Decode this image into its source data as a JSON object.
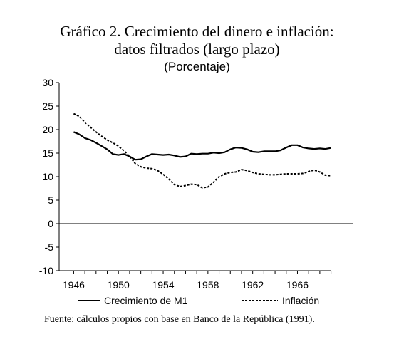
{
  "title_line1": "Gráfico 2. Crecimiento del dinero e inflación:",
  "title_line2": "datos filtrados (largo plazo)",
  "subtitle": "(Porcentaje)",
  "source": "Fuente: cálculos propios con base en Banco de la República (1991).",
  "chart_data": {
    "type": "line",
    "xlim": [
      1944.7,
      1971.0
    ],
    "ylim": [
      -10,
      30
    ],
    "yticks": [
      -10,
      -5,
      0,
      5,
      10,
      15,
      20,
      25,
      30
    ],
    "xticks": [
      1946,
      1950,
      1954,
      1958,
      1962,
      1966
    ],
    "grid": false,
    "legend_position": "bottom",
    "series": [
      {
        "name": "Crecimiento de M1",
        "style": "solid",
        "color": "#000000",
        "x": [
          1946,
          1946.5,
          1947,
          1947.5,
          1948,
          1948.5,
          1949,
          1949.5,
          1950,
          1950.5,
          1951,
          1951.5,
          1952,
          1952.5,
          1953,
          1953.5,
          1954,
          1954.5,
          1955,
          1955.5,
          1956,
          1956.5,
          1957,
          1957.5,
          1958,
          1958.5,
          1959,
          1959.5,
          1960,
          1960.5,
          1961,
          1961.5,
          1962,
          1962.5,
          1963,
          1963.5,
          1964,
          1964.5,
          1965,
          1965.5,
          1966,
          1966.5,
          1967,
          1967.5,
          1968,
          1968.5,
          1969
        ],
        "values": [
          19.5,
          19.0,
          18.2,
          17.8,
          17.2,
          16.5,
          15.8,
          14.8,
          14.6,
          14.8,
          14.3,
          13.6,
          13.7,
          14.3,
          14.8,
          14.7,
          14.6,
          14.7,
          14.5,
          14.2,
          14.3,
          14.9,
          14.8,
          14.9,
          14.9,
          15.1,
          15.0,
          15.2,
          15.8,
          16.2,
          16.1,
          15.8,
          15.3,
          15.2,
          15.4,
          15.4,
          15.4,
          15.6,
          16.2,
          16.7,
          16.7,
          16.2,
          16.0,
          15.9,
          16.0,
          15.9,
          16.1
        ]
      },
      {
        "name": "Inflación",
        "style": "dashed",
        "color": "#000000",
        "x": [
          1946,
          1946.5,
          1947,
          1947.5,
          1948,
          1948.5,
          1949,
          1949.5,
          1950,
          1950.5,
          1951,
          1951.5,
          1952,
          1952.5,
          1953,
          1953.5,
          1954,
          1954.5,
          1955,
          1955.5,
          1956,
          1956.5,
          1957,
          1957.5,
          1958,
          1958.5,
          1959,
          1959.5,
          1960,
          1960.5,
          1961,
          1961.5,
          1962,
          1962.5,
          1963,
          1963.5,
          1964,
          1964.5,
          1965,
          1965.5,
          1966,
          1966.5,
          1967,
          1967.5,
          1968,
          1968.5,
          1969
        ],
        "values": [
          23.4,
          22.8,
          21.6,
          20.5,
          19.5,
          18.6,
          17.8,
          17.2,
          16.5,
          15.5,
          14.3,
          12.8,
          12.1,
          11.8,
          11.7,
          11.3,
          10.5,
          9.5,
          8.3,
          7.9,
          8.1,
          8.4,
          8.3,
          7.6,
          7.8,
          8.8,
          10.0,
          10.6,
          10.9,
          11.0,
          11.5,
          11.3,
          10.9,
          10.6,
          10.5,
          10.4,
          10.4,
          10.5,
          10.6,
          10.6,
          10.6,
          10.7,
          11.1,
          11.4,
          11.0,
          10.3,
          10.2
        ]
      }
    ]
  }
}
